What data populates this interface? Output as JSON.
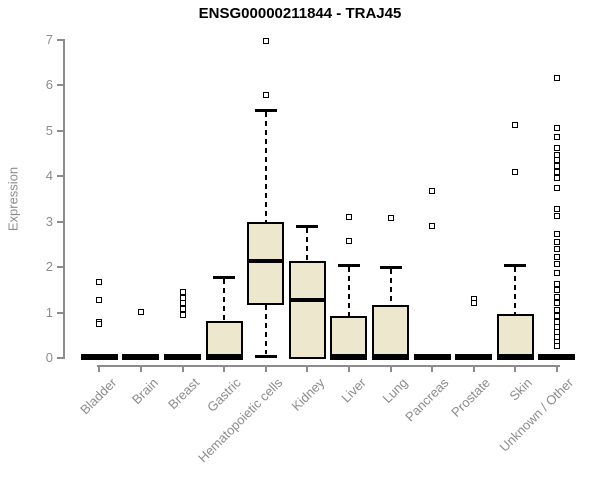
{
  "title": "ENSG00000211844 - TRAJ45",
  "chart_data": {
    "type": "boxplot",
    "title": "ENSG00000211844 - TRAJ45",
    "xlabel": "",
    "ylabel": "Expression",
    "ylim": [
      0,
      7
    ],
    "yticks": [
      0,
      1,
      2,
      3,
      4,
      5,
      6,
      7
    ],
    "grid": false,
    "legend": "none",
    "colors": {
      "box_fill": "#ede7cd",
      "box_border": "#000000",
      "median": "#000000",
      "axis": "#8c8c8c",
      "tick_label": "#8c8c8c",
      "title": "#000000"
    },
    "categories": [
      "Bladder",
      "Brain",
      "Breast",
      "Gastric",
      "Hematopoietic cells",
      "Kidney",
      "Liver",
      "Lung",
      "Pancreas",
      "Prostate",
      "Skin",
      "Unknown / Other"
    ],
    "series": [
      {
        "label": "Bladder",
        "whisker_low": 0,
        "q1": 0,
        "median": 0.02,
        "q3": 0.04,
        "whisker_high": 0.04,
        "outliers": [
          1.68,
          1.27,
          0.8,
          0.74
        ]
      },
      {
        "label": "Brain",
        "whisker_low": 0,
        "q1": 0,
        "median": 0.02,
        "q3": 0.04,
        "whisker_high": 0.04,
        "outliers": [
          1.02
        ]
      },
      {
        "label": "Breast",
        "whisker_low": 0,
        "q1": 0,
        "median": 0.02,
        "q3": 0.04,
        "whisker_high": 0.04,
        "outliers": [
          1.45,
          1.32,
          1.2,
          1.08,
          0.95
        ]
      },
      {
        "label": "Gastric",
        "whisker_low": 0,
        "q1": 0,
        "median": 0.04,
        "q3": 0.78,
        "whisker_high": 1.79,
        "outliers": []
      },
      {
        "label": "Hematopoietic cells",
        "whisker_low": 0.05,
        "q1": 1.22,
        "median": 2.13,
        "q3": 2.95,
        "whisker_high": 5.45,
        "outliers": [
          6.97,
          5.78
        ]
      },
      {
        "label": "Kidney",
        "whisker_low": 0.03,
        "q1": 0.03,
        "median": 1.28,
        "q3": 2.1,
        "whisker_high": 2.9,
        "outliers": []
      },
      {
        "label": "Liver",
        "whisker_low": 0,
        "q1": 0,
        "median": 0.04,
        "q3": 0.87,
        "whisker_high": 2.04,
        "outliers": [
          3.1,
          2.57
        ]
      },
      {
        "label": "Lung",
        "whisker_low": 0,
        "q1": 0,
        "median": 0.05,
        "q3": 1.13,
        "whisker_high": 2.0,
        "outliers": [
          3.07
        ]
      },
      {
        "label": "Pancreas",
        "whisker_low": 0,
        "q1": 0,
        "median": 0.02,
        "q3": 0.04,
        "whisker_high": 0.04,
        "outliers": [
          3.67,
          2.9
        ]
      },
      {
        "label": "Prostate",
        "whisker_low": 0,
        "q1": 0,
        "median": 0.02,
        "q3": 0.04,
        "whisker_high": 0.04,
        "outliers": [
          1.3,
          1.2
        ]
      },
      {
        "label": "Skin",
        "whisker_low": 0,
        "q1": 0,
        "median": 0.04,
        "q3": 0.93,
        "whisker_high": 2.04,
        "outliers": [
          5.12,
          4.1
        ]
      },
      {
        "label": "Unknown / Other",
        "whisker_low": 0,
        "q1": 0,
        "median": 0.02,
        "q3": 0.04,
        "whisker_high": 0.04,
        "outliers": [
          6.17,
          5.05,
          4.87,
          4.63,
          4.46,
          4.35,
          4.22,
          4.1,
          3.97,
          3.74,
          3.28,
          3.12,
          2.72,
          2.56,
          2.4,
          2.23,
          2.06,
          1.88,
          1.62,
          1.49,
          1.35,
          1.22,
          1.06,
          0.92,
          0.8,
          0.69,
          0.58,
          0.47,
          0.36,
          0.26
        ]
      }
    ]
  }
}
